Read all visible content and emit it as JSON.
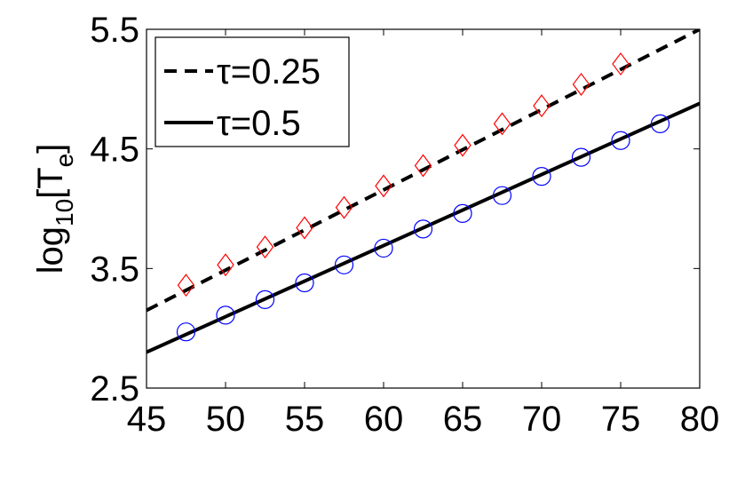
{
  "chart_data": {
    "type": "line",
    "ylabel": [
      "log",
      "10",
      "[T",
      "e",
      "]"
    ],
    "xlim": [
      45,
      80
    ],
    "xticks": [
      45,
      50,
      55,
      60,
      65,
      70,
      75,
      80
    ],
    "ylim": [
      2.5,
      5.5
    ],
    "yticks": [
      2.5,
      3.5,
      4.5,
      5.5
    ],
    "legend": "upper left",
    "series": [
      {
        "name": "τ=0.25",
        "color": "#000000",
        "dash": true,
        "x": [
          45,
          80
        ],
        "values": [
          3.15,
          5.5
        ]
      },
      {
        "name": "τ=0.5",
        "color": "#000000",
        "dash": false,
        "x": [
          45,
          80
        ],
        "values": [
          2.8,
          4.88
        ]
      }
    ],
    "markers": [
      {
        "shape": "diamond",
        "color": "#ff0000",
        "x": [
          47.5,
          50,
          52.5,
          55,
          57.5,
          60,
          62.5,
          65,
          67.5,
          70,
          72.5,
          75
        ],
        "values": [
          3.36,
          3.53,
          3.68,
          3.84,
          4.01,
          4.19,
          4.36,
          4.53,
          4.71,
          4.86,
          5.04,
          5.21
        ]
      },
      {
        "shape": "circle",
        "color": "#0000ff",
        "x": [
          47.5,
          50,
          52.5,
          55,
          57.5,
          60,
          62.5,
          65,
          67.5,
          70,
          72.5,
          75,
          77.5
        ],
        "values": [
          2.97,
          3.11,
          3.24,
          3.38,
          3.53,
          3.67,
          3.83,
          3.96,
          4.11,
          4.27,
          4.43,
          4.57,
          4.71
        ]
      }
    ]
  }
}
